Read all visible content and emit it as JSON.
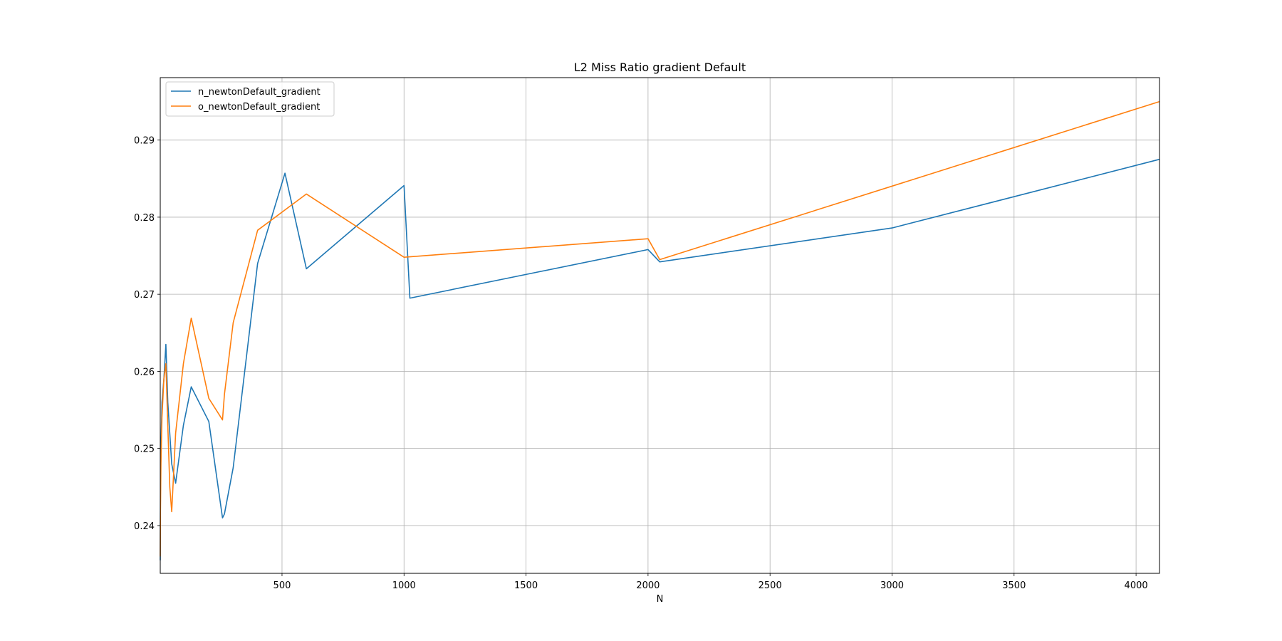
{
  "chart_data": {
    "type": "line",
    "title": "L2 Miss Ratio gradient Default",
    "xlabel": "N",
    "ylabel": "",
    "xlim": [
      1,
      4096
    ],
    "ylim": [
      0.2338,
      0.2981
    ],
    "xticks": [
      500,
      1000,
      1500,
      2000,
      2500,
      3000,
      3500,
      4000
    ],
    "yticks": [
      0.24,
      0.25,
      0.26,
      0.27,
      0.28,
      0.29
    ],
    "xtick_labels": [
      "500",
      "1000",
      "1500",
      "2000",
      "2500",
      "3000",
      "3500",
      "4000"
    ],
    "ytick_labels": [
      "0.24",
      "0.25",
      "0.26",
      "0.27",
      "0.28",
      "0.29"
    ],
    "grid": true,
    "legend_position": "top-left",
    "colors": {
      "n": "#1f77b4",
      "o": "#ff7f0e"
    },
    "series": [
      {
        "name": "n_newtonDefault_gradient",
        "color": "#1f77b4",
        "x": [
          1,
          2,
          4,
          8,
          16,
          24,
          32,
          48,
          64,
          96,
          128,
          200,
          256,
          264,
          300,
          400,
          512,
          600,
          1000,
          1024,
          2000,
          2048,
          3000,
          4096
        ],
        "y": [
          0.2355,
          0.244,
          0.25,
          0.256,
          0.259,
          0.2635,
          0.256,
          0.248,
          0.2455,
          0.253,
          0.258,
          0.2535,
          0.241,
          0.2415,
          0.2475,
          0.274,
          0.2857,
          0.2733,
          0.2841,
          0.2695,
          0.2758,
          0.2742,
          0.2786,
          0.2875
        ]
      },
      {
        "name": "o_newtonDefault_gradient",
        "color": "#ff7f0e",
        "x": [
          1,
          2,
          4,
          8,
          16,
          24,
          32,
          40,
          48,
          64,
          96,
          128,
          200,
          256,
          264,
          300,
          400,
          600,
          1000,
          2000,
          2048,
          4096
        ],
        "y": [
          0.236,
          0.242,
          0.248,
          0.254,
          0.259,
          0.261,
          0.253,
          0.245,
          0.2418,
          0.252,
          0.261,
          0.2669,
          0.2565,
          0.2537,
          0.257,
          0.2663,
          0.2783,
          0.283,
          0.2748,
          0.2772,
          0.2745,
          0.295
        ]
      }
    ]
  }
}
